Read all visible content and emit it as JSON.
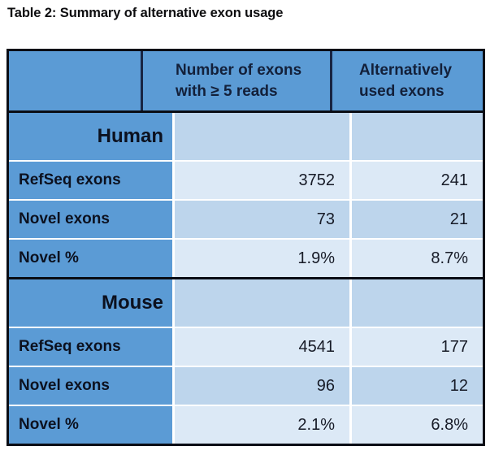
{
  "page": {
    "caption": "Table 2: Summary of alternative exon usage"
  },
  "table": {
    "header": {
      "col1": "",
      "col2": "Number of exons\nwith ≥ 5 reads",
      "col3": "Alternatively\nused exons"
    },
    "sections": [
      {
        "name": "Human",
        "rows": [
          {
            "label": "RefSeq exons",
            "col2": "3752",
            "col3": "241"
          },
          {
            "label": "Novel exons",
            "col2": "73",
            "col3": "21"
          },
          {
            "label": "Novel %",
            "col2": "1.9%",
            "col3": "8.7%"
          }
        ]
      },
      {
        "name": "Mouse",
        "rows": [
          {
            "label": "RefSeq exons",
            "col2": "4541",
            "col3": "177"
          },
          {
            "label": "Novel exons",
            "col2": "96",
            "col3": "12"
          },
          {
            "label": "Novel %",
            "col2": "2.1%",
            "col3": "6.8%"
          }
        ]
      }
    ]
  },
  "colors": {
    "accent_blue": "#5B9BD5",
    "row_light": "#DCE9F6",
    "row_medium": "#BDD5EC",
    "border_dark": "#0A0D15",
    "header_separator": "#182543",
    "separator_white": "#FFFFFF",
    "text_dark": "#0C111F"
  },
  "chart_data": {
    "type": "table",
    "title": "Table 2: Summary of alternative exon usage",
    "columns": [
      "Number of exons with ≥ 5 reads",
      "Alternatively used exons"
    ],
    "sections": [
      {
        "group": "Human",
        "rows": [
          {
            "label": "RefSeq exons",
            "values": [
              3752,
              241
            ]
          },
          {
            "label": "Novel exons",
            "values": [
              73,
              21
            ]
          },
          {
            "label": "Novel %",
            "values": [
              "1.9%",
              "8.7%"
            ]
          }
        ]
      },
      {
        "group": "Mouse",
        "rows": [
          {
            "label": "RefSeq exons",
            "values": [
              4541,
              177
            ]
          },
          {
            "label": "Novel exons",
            "values": [
              96,
              12
            ]
          },
          {
            "label": "Novel %",
            "values": [
              "2.1%",
              "6.8%"
            ]
          }
        ]
      }
    ]
  }
}
